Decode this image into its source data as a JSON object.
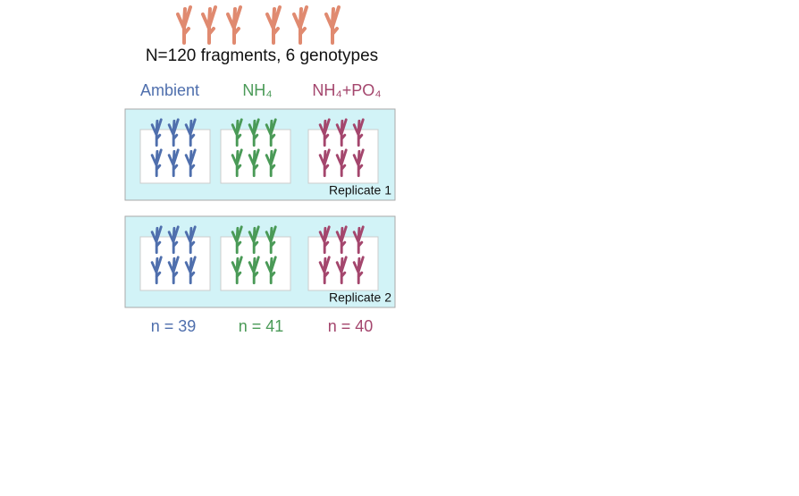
{
  "header": {
    "title": "N=120 fragments, 6 genotypes"
  },
  "treatments": [
    {
      "label": "Ambient",
      "count": "n = 39"
    },
    {
      "label": "NH₄",
      "count": "n = 41"
    },
    {
      "label": "NH₄+PO₄",
      "count": "n = 40"
    }
  ],
  "replicates": [
    "Replicate 1",
    "Replicate 2"
  ]
}
